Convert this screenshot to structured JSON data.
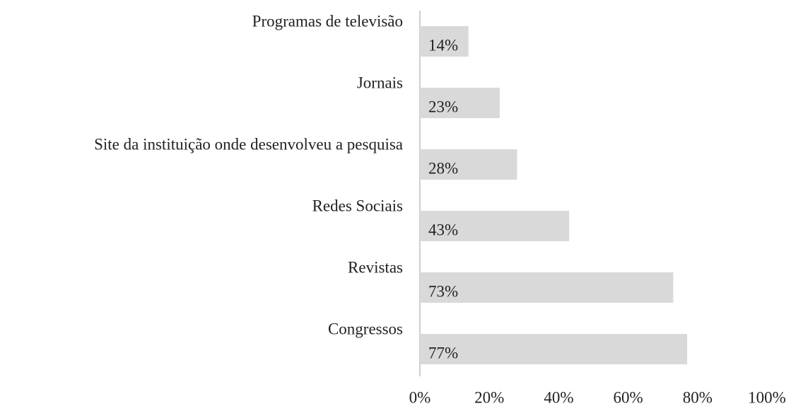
{
  "chart_data": {
    "type": "barh",
    "categories": [
      "Programas de televisão",
      "Jornais",
      "Site da instituição onde desenvolveu a pesquisa",
      "Redes Sociais",
      "Revistas",
      "Congressos"
    ],
    "values": [
      14,
      23,
      28,
      43,
      73,
      77
    ],
    "value_labels": [
      "14%",
      "23%",
      "28%",
      "43%",
      "73%",
      "77%"
    ],
    "color": "#d9d9d9",
    "xlim": [
      0,
      100
    ],
    "xticks": [
      {
        "value": 0,
        "label": "0%"
      },
      {
        "value": 20,
        "label": "20%"
      },
      {
        "value": 40,
        "label": "40%"
      },
      {
        "value": 60,
        "label": "60%"
      },
      {
        "value": 80,
        "label": "80%"
      },
      {
        "value": 100,
        "label": "100%"
      }
    ],
    "grid": false
  }
}
